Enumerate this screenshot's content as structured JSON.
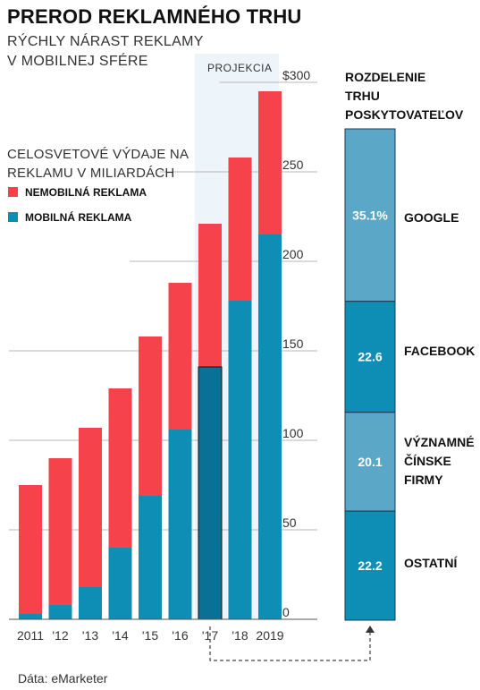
{
  "title": "PREROD REKLAMNÉHO TRHU",
  "subtitle_line1": "RÝCHLY NÁRAST REKLAMY",
  "subtitle_line2": "V MOBILNEJ SFÉRE",
  "legend": {
    "title_line1": "CELOSVETOVÉ VÝDAJE NA",
    "title_line2": "REKLAMU V MILIARDÁCH",
    "items": [
      {
        "label": "NEMOBILNÁ REKLAMA",
        "color": "#f5424b"
      },
      {
        "label": "MOBILNÁ REKLAMA",
        "color": "#0e8db5"
      }
    ]
  },
  "projection_label": "PROJEKCIA",
  "source": "Dáta: eMarketer",
  "chart_data": [
    {
      "type": "bar",
      "stacked": true,
      "categories": [
        "2011",
        "'12",
        "'13",
        "'14",
        "'15",
        "'16",
        "'17",
        "'18",
        "2019"
      ],
      "series": [
        {
          "name": "MOBILNÁ REKLAMA",
          "values": [
            3,
            8,
            18,
            40,
            69,
            106,
            141,
            178,
            215
          ]
        },
        {
          "name": "NEMOBILNÁ REKLAMA",
          "values": [
            72,
            82,
            89,
            89,
            89,
            82,
            80,
            80,
            80
          ]
        }
      ],
      "totals": [
        75,
        90,
        107,
        129,
        158,
        188,
        221,
        258,
        295
      ],
      "ylim": [
        0,
        300
      ],
      "yticks": [
        "0",
        "50",
        "100",
        "150",
        "200",
        "250",
        "$300"
      ],
      "projection_from": "'17",
      "highlighted_category": "'17",
      "colors": {
        "mobile": "#0e8db5",
        "nonmobile": "#f5424b",
        "highlight": "#0a7196",
        "projection_bg": "#eef5fa"
      }
    },
    {
      "type": "bar",
      "stacked": true,
      "title_lines": [
        "ROZDELENIE",
        "TRHU",
        "POSKYTOVATEĽOV"
      ],
      "segments": [
        {
          "label_lines": [
            "GOOGLE"
          ],
          "value": 35.1,
          "value_label": "35.1%",
          "color": "#5ba7c8"
        },
        {
          "label_lines": [
            "FACEBOOK"
          ],
          "value": 22.6,
          "value_label": "22.6",
          "color": "#0e8db5"
        },
        {
          "label_lines": [
            "VÝZNAMNÉ",
            "ČÍNSKE",
            "FIRMY"
          ],
          "value": 20.1,
          "value_label": "20.1",
          "color": "#5ba7c8"
        },
        {
          "label_lines": [
            "OSTATNÍ"
          ],
          "value": 22.2,
          "value_label": "22.2",
          "color": "#0e8db5"
        }
      ]
    }
  ]
}
